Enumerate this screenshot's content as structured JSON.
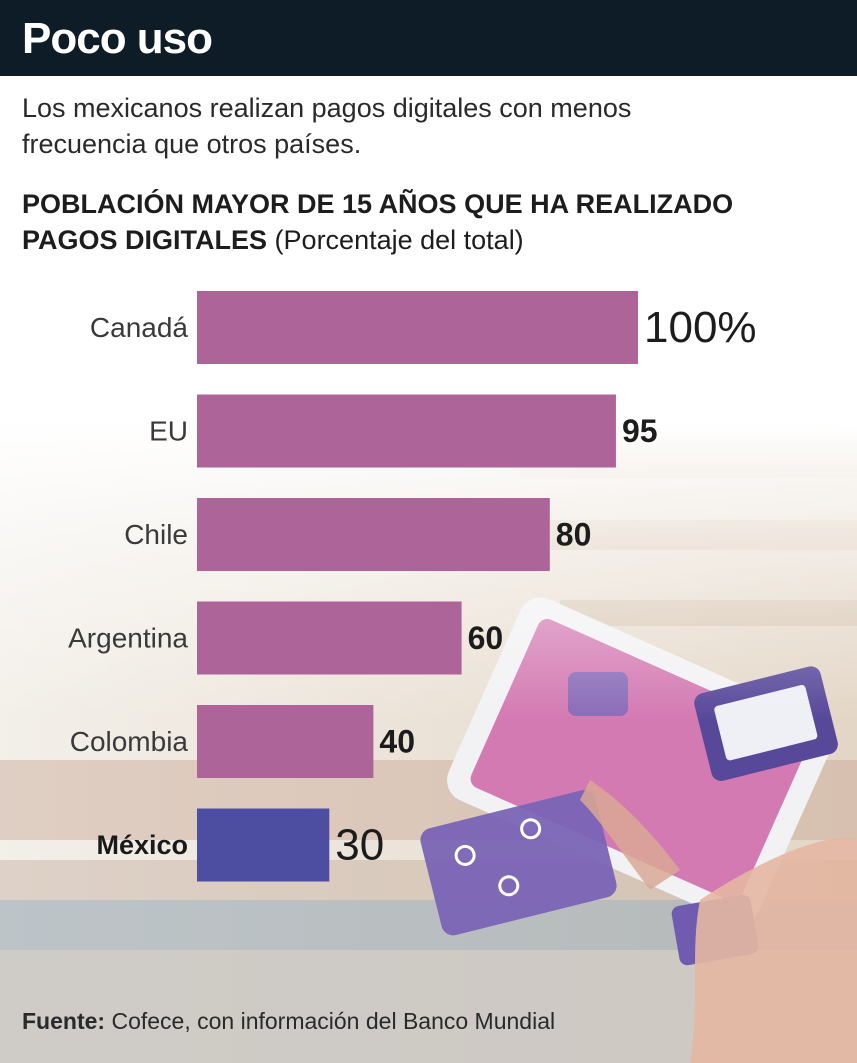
{
  "header": {
    "title": "Poco uso"
  },
  "subtitle": "Los mexicanos realizan pagos digitales con menos frecuencia que otros países.",
  "chart_heading": {
    "bold": "POBLACIÓN MAYOR DE 15 AÑOS QUE HA REALIZADO PAGOS DIGITALES",
    "normal": "(Porcentaje del total)"
  },
  "chart_data": {
    "type": "bar",
    "orientation": "horizontal",
    "title": "POBLACIÓN MAYOR DE 15 AÑOS QUE HA REALIZADO PAGOS DIGITALES (Porcentaje del total)",
    "categories": [
      "Canadá",
      "EU",
      "Chile",
      "Argentina",
      "Colombia",
      "México"
    ],
    "values": [
      100,
      95,
      80,
      60,
      40,
      30
    ],
    "value_labels": [
      "100%",
      "95",
      "80",
      "60",
      "40",
      "30"
    ],
    "highlight": "México",
    "xlim": [
      0,
      100
    ],
    "grid": false,
    "legend": "none",
    "colors": {
      "bar": "#ad6498",
      "highlight": "#4d4ea1"
    }
  },
  "source": {
    "label": "Fuente:",
    "text": "Cofece, con información del Banco Mundial"
  },
  "colors": {
    "header_bg": "#0e1c27",
    "header_text": "#ffffff"
  }
}
